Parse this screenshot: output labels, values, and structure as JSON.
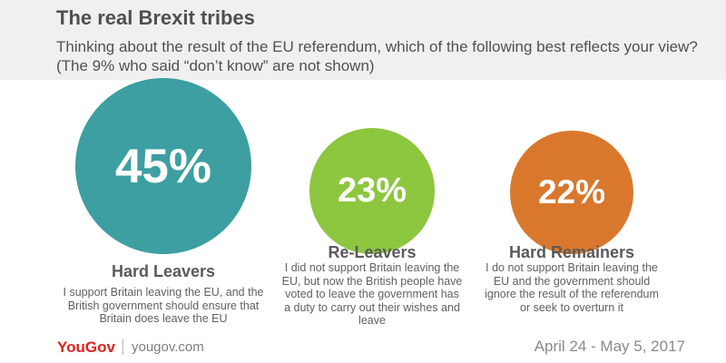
{
  "title": "The real Brexit tribes",
  "subtitle": "Thinking about the result of the EU referendum, which of the following best reflects your view? (The 9% who said “don’t know” are not shown)",
  "chart_data": {
    "type": "bubble",
    "categories": [
      "Hard Leavers",
      "Re-Leavers",
      "Hard Remainers"
    ],
    "values": [
      45,
      23,
      22
    ],
    "value_labels": [
      "45%",
      "23%",
      "22%"
    ],
    "descriptions": [
      "I support Britain leaving the EU, and the British government should ensure that Britain does leave the EU",
      "I did not support Britain leaving the EU, but now the British people have voted to leave the government has a duty to carry out their wishes and leave",
      "I do not support Britain leaving the EU and the government should ignore the result of the referendum or seek to overturn it"
    ],
    "colors": [
      "#3d9fa1",
      "#8dc63f",
      "#d9782d"
    ]
  },
  "footer": {
    "brand": "YouGov",
    "separator": "|",
    "website": "yougov.com",
    "date_range": "April 24 - May 5, 2017"
  }
}
